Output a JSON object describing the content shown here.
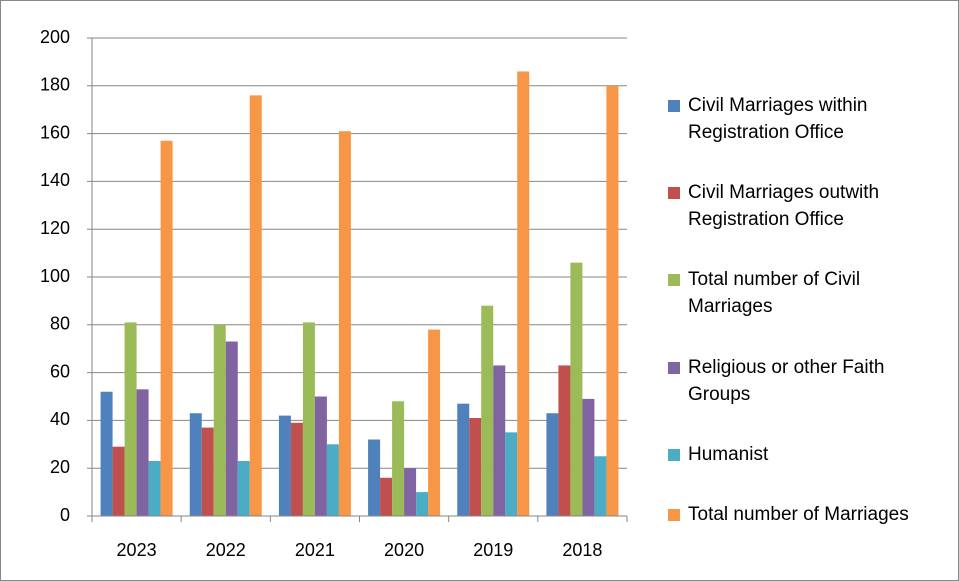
{
  "chart_data": {
    "type": "bar",
    "categories": [
      "2023",
      "2022",
      "2021",
      "2020",
      "2019",
      "2018"
    ],
    "series": [
      {
        "name": "Civil Marriages within Registration Office",
        "color": "#4f81bd",
        "values": [
          52,
          43,
          42,
          32,
          47,
          43
        ]
      },
      {
        "name": "Civil Marriages outwith Registration Office",
        "color": "#c0504d",
        "values": [
          29,
          37,
          39,
          16,
          41,
          63
        ]
      },
      {
        "name": "Total number of Civil Marriages",
        "color": "#9bbb59",
        "values": [
          81,
          80,
          81,
          48,
          88,
          106
        ]
      },
      {
        "name": "Religious or other Faith Groups",
        "color": "#8064a2",
        "values": [
          53,
          73,
          50,
          20,
          63,
          49
        ]
      },
      {
        "name": "Humanist",
        "color": "#4bacc6",
        "values": [
          23,
          23,
          30,
          10,
          35,
          25
        ]
      },
      {
        "name": "Total number of Marriages",
        "color": "#f79646",
        "values": [
          157,
          176,
          161,
          78,
          186,
          180
        ]
      }
    ],
    "ylim": [
      0,
      200
    ],
    "yticks": [
      0,
      20,
      40,
      60,
      80,
      100,
      120,
      140,
      160,
      180,
      200
    ],
    "grid": true,
    "legend": "right"
  }
}
